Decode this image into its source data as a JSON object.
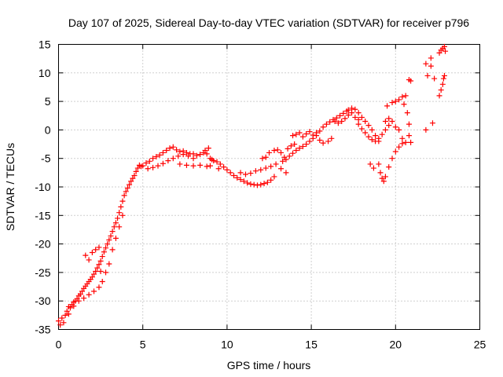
{
  "chart_data": {
    "type": "scatter",
    "title": "Day 107 of 2025, Sidereal Day-to-day VTEC variation (SDTVAR) for receiver p796",
    "xlabel": "GPS time / hours",
    "ylabel": "SDTVAR / TECUs",
    "xlim": [
      0,
      25
    ],
    "ylim": [
      -35,
      15
    ],
    "xticks": [
      0,
      5,
      10,
      15,
      20,
      25
    ],
    "yticks": [
      -35,
      -30,
      -25,
      -20,
      -15,
      -10,
      -5,
      0,
      5,
      10,
      15
    ],
    "xtick_labels": [
      "0",
      "5",
      "10",
      "15",
      "20",
      "25"
    ],
    "ytick_labels": [
      "-35",
      "-30",
      "-25",
      "-20",
      "-15",
      "-10",
      "-5",
      "0",
      "5",
      "10",
      "15"
    ],
    "grid": true,
    "marker": "+",
    "color": "#ff0000",
    "series": [
      {
        "points": [
          [
            0.0,
            -33.5
          ],
          [
            0.1,
            -34.2
          ],
          [
            0.2,
            -33.0
          ],
          [
            0.3,
            -33.8
          ],
          [
            0.4,
            -32.5
          ],
          [
            0.5,
            -31.8
          ],
          [
            0.6,
            -32.3
          ],
          [
            0.7,
            -31.2
          ],
          [
            0.8,
            -30.6
          ],
          [
            0.9,
            -30.9
          ],
          [
            1.0,
            -30.0
          ],
          [
            1.1,
            -29.6
          ],
          [
            1.2,
            -29.1
          ],
          [
            1.3,
            -28.8
          ],
          [
            1.4,
            -28.3
          ],
          [
            1.5,
            -27.8
          ],
          [
            1.6,
            -27.4
          ],
          [
            1.7,
            -27.0
          ],
          [
            1.8,
            -26.6
          ],
          [
            1.9,
            -26.2
          ],
          [
            2.0,
            -25.8
          ],
          [
            2.1,
            -25.3
          ],
          [
            2.2,
            -24.8
          ],
          [
            2.3,
            -24.2
          ],
          [
            2.4,
            -23.6
          ],
          [
            2.5,
            -23.0
          ],
          [
            2.6,
            -22.2
          ],
          [
            2.7,
            -21.4
          ],
          [
            2.8,
            -20.7
          ],
          [
            2.9,
            -20.0
          ],
          [
            3.0,
            -19.3
          ],
          [
            3.1,
            -18.6
          ],
          [
            3.2,
            -17.8
          ],
          [
            3.3,
            -17.0
          ],
          [
            3.4,
            -16.3
          ],
          [
            3.5,
            -15.5
          ],
          [
            3.6,
            -14.5
          ],
          [
            3.7,
            -13.5
          ],
          [
            3.8,
            -12.5
          ],
          [
            3.9,
            -11.5
          ],
          [
            4.0,
            -10.8
          ],
          [
            4.1,
            -10.2
          ],
          [
            4.2,
            -9.6
          ],
          [
            4.3,
            -9.0
          ],
          [
            4.4,
            -8.5
          ],
          [
            4.5,
            -8.0
          ],
          [
            4.6,
            -7.3
          ],
          [
            4.7,
            -6.7
          ],
          [
            4.8,
            -6.2
          ],
          [
            4.9,
            -6.4
          ],
          [
            0.6,
            -31.0
          ],
          [
            0.9,
            -30.2
          ],
          [
            1.2,
            -30.0
          ],
          [
            1.5,
            -29.5
          ],
          [
            1.8,
            -28.9
          ],
          [
            2.1,
            -28.3
          ],
          [
            2.4,
            -27.6
          ],
          [
            2.6,
            -26.6
          ],
          [
            2.8,
            -25.0
          ],
          [
            3.0,
            -23.5
          ],
          [
            3.2,
            -21.0
          ],
          [
            3.4,
            -19.0
          ],
          [
            3.6,
            -17.0
          ],
          [
            3.8,
            -15.0
          ],
          [
            1.6,
            -22.0
          ],
          [
            1.8,
            -22.8
          ],
          [
            2.0,
            -21.5
          ],
          [
            2.2,
            -21.0
          ],
          [
            2.4,
            -20.6
          ],
          [
            2.5,
            -24.8
          ],
          [
            5.0,
            -6.3
          ],
          [
            5.2,
            -5.8
          ],
          [
            5.4,
            -5.5
          ],
          [
            5.6,
            -5.0
          ],
          [
            5.8,
            -4.7
          ],
          [
            6.0,
            -4.4
          ],
          [
            6.2,
            -4.0
          ],
          [
            6.4,
            -3.6
          ],
          [
            6.6,
            -3.2
          ],
          [
            6.8,
            -3.0
          ],
          [
            5.3,
            -6.8
          ],
          [
            5.6,
            -6.6
          ],
          [
            5.9,
            -6.3
          ],
          [
            6.2,
            -5.9
          ],
          [
            6.5,
            -5.4
          ],
          [
            6.8,
            -5.0
          ],
          [
            7.1,
            -4.6
          ],
          [
            7.4,
            -4.3
          ],
          [
            7.7,
            -4.6
          ],
          [
            8.0,
            -5.0
          ],
          [
            7.0,
            -3.5
          ],
          [
            7.2,
            -3.8
          ],
          [
            7.4,
            -3.7
          ],
          [
            7.6,
            -4.0
          ],
          [
            7.8,
            -4.2
          ],
          [
            8.0,
            -4.2
          ],
          [
            8.2,
            -4.5
          ],
          [
            8.4,
            -4.3
          ],
          [
            8.6,
            -4.0
          ],
          [
            8.8,
            -4.2
          ],
          [
            7.2,
            -6.0
          ],
          [
            7.6,
            -6.2
          ],
          [
            8.0,
            -6.3
          ],
          [
            8.4,
            -6.2
          ],
          [
            8.8,
            -6.4
          ],
          [
            9.0,
            -5.0
          ],
          [
            9.2,
            -5.4
          ],
          [
            9.4,
            -5.6
          ],
          [
            9.6,
            -6.0
          ],
          [
            9.8,
            -6.5
          ],
          [
            8.7,
            -3.6
          ],
          [
            8.9,
            -3.2
          ],
          [
            9.1,
            -5.2
          ],
          [
            9.5,
            -6.8
          ],
          [
            9.0,
            -6.3
          ],
          [
            10.0,
            -7.0
          ],
          [
            10.2,
            -7.5
          ],
          [
            10.4,
            -8.0
          ],
          [
            10.6,
            -8.4
          ],
          [
            10.8,
            -8.7
          ],
          [
            11.0,
            -9.0
          ],
          [
            11.2,
            -9.3
          ],
          [
            11.4,
            -9.5
          ],
          [
            11.6,
            -9.6
          ],
          [
            11.8,
            -9.7
          ],
          [
            12.0,
            -9.6
          ],
          [
            12.2,
            -9.4
          ],
          [
            12.4,
            -9.2
          ],
          [
            12.6,
            -8.8
          ],
          [
            12.8,
            -8.2
          ],
          [
            10.8,
            -7.5
          ],
          [
            11.1,
            -7.8
          ],
          [
            11.4,
            -7.6
          ],
          [
            11.7,
            -7.2
          ],
          [
            12.0,
            -7.0
          ],
          [
            12.3,
            -6.7
          ],
          [
            12.6,
            -6.4
          ],
          [
            12.9,
            -6.0
          ],
          [
            13.2,
            -6.8
          ],
          [
            13.5,
            -7.5
          ],
          [
            12.1,
            -5.0
          ],
          [
            12.3,
            -4.8
          ],
          [
            12.5,
            -4.0
          ],
          [
            12.8,
            -3.6
          ],
          [
            13.0,
            -3.5
          ],
          [
            13.2,
            -4.0
          ],
          [
            13.4,
            -4.8
          ],
          [
            13.6,
            -3.3
          ],
          [
            13.8,
            -2.8
          ],
          [
            14.0,
            -2.5
          ],
          [
            13.3,
            -5.5
          ],
          [
            13.5,
            -5.2
          ],
          [
            13.7,
            -4.6
          ],
          [
            13.9,
            -4.1
          ],
          [
            14.1,
            -3.6
          ],
          [
            14.3,
            -3.2
          ],
          [
            14.5,
            -2.9
          ],
          [
            14.7,
            -2.5
          ],
          [
            14.9,
            -2.0
          ],
          [
            15.1,
            -1.5
          ],
          [
            13.9,
            -1.0
          ],
          [
            14.1,
            -0.8
          ],
          [
            14.3,
            -0.5
          ],
          [
            14.5,
            -1.2
          ],
          [
            14.7,
            -0.7
          ],
          [
            14.9,
            -0.3
          ],
          [
            15.1,
            -0.9
          ],
          [
            15.3,
            -1.0
          ],
          [
            15.5,
            -1.8
          ],
          [
            15.7,
            -2.3
          ],
          [
            15.3,
            -0.5
          ],
          [
            15.5,
            -0.2
          ],
          [
            15.7,
            0.5
          ],
          [
            15.9,
            1.0
          ],
          [
            16.1,
            1.4
          ],
          [
            16.3,
            1.8
          ],
          [
            16.5,
            2.1
          ],
          [
            16.7,
            2.5
          ],
          [
            16.9,
            2.9
          ],
          [
            17.1,
            3.3
          ],
          [
            16.0,
            -2.0
          ],
          [
            16.2,
            -1.5
          ],
          [
            16.4,
            1.5
          ],
          [
            16.6,
            1.2
          ],
          [
            16.8,
            1.5
          ],
          [
            17.0,
            2.0
          ],
          [
            17.2,
            2.6
          ],
          [
            17.4,
            3.0
          ],
          [
            17.6,
            2.2
          ],
          [
            17.8,
            1.8
          ],
          [
            17.2,
            3.5
          ],
          [
            17.4,
            3.8
          ],
          [
            17.6,
            3.6
          ],
          [
            17.8,
            3.0
          ],
          [
            18.0,
            2.2
          ],
          [
            18.2,
            1.5
          ],
          [
            18.4,
            0.8
          ],
          [
            18.6,
            0.0
          ],
          [
            18.8,
            -1.0
          ],
          [
            19.0,
            -2.0
          ],
          [
            17.8,
            1.0
          ],
          [
            18.0,
            0.2
          ],
          [
            18.2,
            -0.5
          ],
          [
            18.4,
            -1.2
          ],
          [
            18.6,
            -1.7
          ],
          [
            18.8,
            -2.0
          ],
          [
            19.0,
            -1.5
          ],
          [
            19.2,
            -0.8
          ],
          [
            19.4,
            0.0
          ],
          [
            19.6,
            0.8
          ],
          [
            19.0,
            -6.0
          ],
          [
            19.1,
            -7.5
          ],
          [
            19.2,
            -8.5
          ],
          [
            19.3,
            -9.0
          ],
          [
            19.4,
            -8.2
          ],
          [
            19.6,
            -6.5
          ],
          [
            19.8,
            -5.0
          ],
          [
            20.0,
            -3.8
          ],
          [
            20.2,
            -3.0
          ],
          [
            20.4,
            -2.4
          ],
          [
            18.5,
            -6.0
          ],
          [
            18.7,
            -6.7
          ],
          [
            19.4,
            1.5
          ],
          [
            19.6,
            2.0
          ],
          [
            19.8,
            1.5
          ],
          [
            20.0,
            0.5
          ],
          [
            20.2,
            0.0
          ],
          [
            20.4,
            -1.5
          ],
          [
            20.6,
            -2.2
          ],
          [
            20.8,
            -1.0
          ],
          [
            19.5,
            4.2
          ],
          [
            19.8,
            4.8
          ],
          [
            20.0,
            5.0
          ],
          [
            20.2,
            5.3
          ],
          [
            20.4,
            5.8
          ],
          [
            20.5,
            4.5
          ],
          [
            20.6,
            6.0
          ],
          [
            20.7,
            3.0
          ],
          [
            20.8,
            1.0
          ],
          [
            20.9,
            -2.2
          ],
          [
            20.8,
            8.8
          ],
          [
            20.9,
            8.6
          ],
          [
            21.8,
            0.0
          ],
          [
            21.8,
            11.6
          ],
          [
            21.9,
            9.5
          ],
          [
            22.1,
            12.6
          ],
          [
            22.1,
            11.2
          ],
          [
            22.2,
            1.2
          ],
          [
            22.3,
            9.0
          ],
          [
            22.6,
            6.0
          ],
          [
            22.7,
            7.0
          ],
          [
            22.8,
            8.0
          ],
          [
            22.85,
            9.0
          ],
          [
            22.9,
            9.5
          ],
          [
            22.6,
            13.5
          ],
          [
            22.7,
            14.0
          ],
          [
            22.8,
            14.3
          ],
          [
            22.9,
            14.6
          ],
          [
            22.95,
            13.8
          ]
        ]
      }
    ]
  }
}
